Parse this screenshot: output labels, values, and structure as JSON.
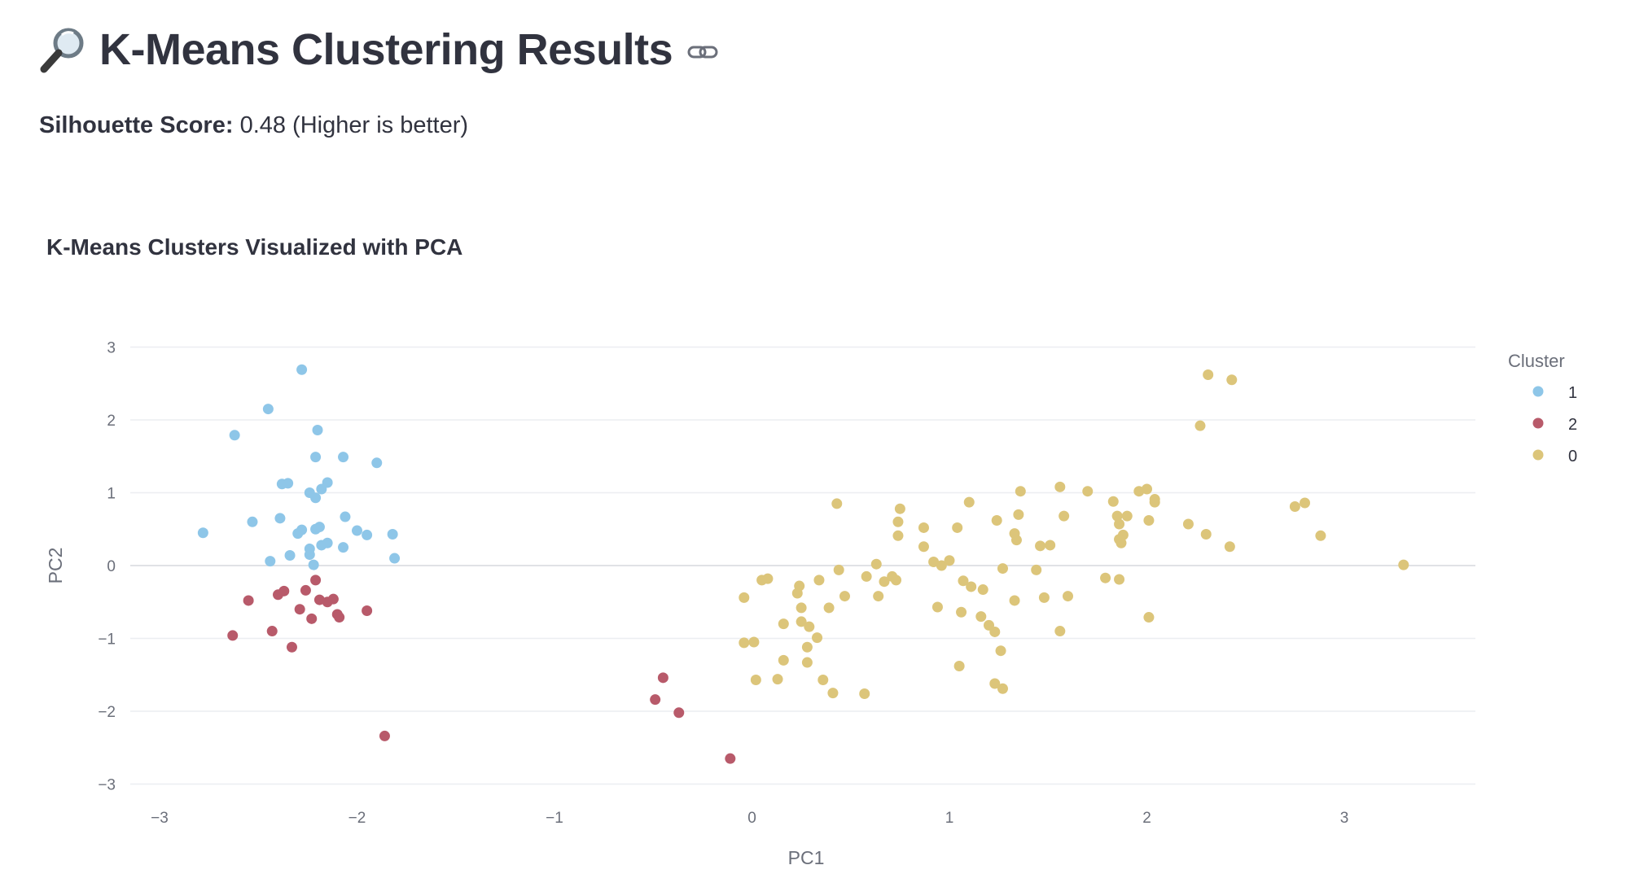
{
  "header": {
    "title": "K-Means Clustering Results",
    "icon": "magnifier-icon",
    "anchor_icon": "link-icon"
  },
  "metric": {
    "label": "Silhouette Score:",
    "value": "0.48 (Higher is better)"
  },
  "chart_data": {
    "type": "scatter",
    "title": "K-Means Clusters Visualized with PCA",
    "xlabel": "PC1",
    "ylabel": "PC2",
    "xlim": [
      -3.3,
      3.65
    ],
    "ylim": [
      -3.2,
      3.1
    ],
    "xticks": [
      -3,
      -2,
      -1,
      0,
      1,
      2,
      3
    ],
    "yticks": [
      -3,
      -2,
      -1,
      0,
      1,
      2,
      3
    ],
    "grid": "horizontal",
    "legend": {
      "title": "Cluster",
      "placement": "right"
    },
    "series": [
      {
        "name": "1",
        "color": "#8ec6e8",
        "points": [
          [
            -2.28,
            2.69
          ],
          [
            -2.45,
            2.15
          ],
          [
            -2.62,
            1.79
          ],
          [
            -2.2,
            1.86
          ],
          [
            -2.21,
            1.49
          ],
          [
            -2.07,
            1.49
          ],
          [
            -1.9,
            1.41
          ],
          [
            -2.35,
            1.13
          ],
          [
            -2.38,
            1.12
          ],
          [
            -2.15,
            1.14
          ],
          [
            -2.18,
            1.05
          ],
          [
            -2.24,
            1.0
          ],
          [
            -2.21,
            0.93
          ],
          [
            -2.06,
            0.67
          ],
          [
            -2.39,
            0.65
          ],
          [
            -2.53,
            0.6
          ],
          [
            -2.78,
            0.45
          ],
          [
            -2.28,
            0.49
          ],
          [
            -2.3,
            0.44
          ],
          [
            -2.19,
            0.53
          ],
          [
            -2.21,
            0.5
          ],
          [
            -2.0,
            0.48
          ],
          [
            -1.95,
            0.42
          ],
          [
            -1.82,
            0.43
          ],
          [
            -2.15,
            0.31
          ],
          [
            -2.18,
            0.28
          ],
          [
            -2.07,
            0.25
          ],
          [
            -2.24,
            0.23
          ],
          [
            -2.24,
            0.15
          ],
          [
            -2.34,
            0.14
          ],
          [
            -1.81,
            0.1
          ],
          [
            -2.44,
            0.06
          ],
          [
            -2.22,
            0.01
          ]
        ]
      },
      {
        "name": "2",
        "color": "#b85a6a",
        "points": [
          [
            -2.21,
            -0.2
          ],
          [
            -2.26,
            -0.34
          ],
          [
            -2.37,
            -0.35
          ],
          [
            -2.4,
            -0.4
          ],
          [
            -2.55,
            -0.48
          ],
          [
            -2.19,
            -0.47
          ],
          [
            -2.12,
            -0.46
          ],
          [
            -2.15,
            -0.5
          ],
          [
            -2.29,
            -0.6
          ],
          [
            -1.95,
            -0.62
          ],
          [
            -2.1,
            -0.67
          ],
          [
            -2.09,
            -0.71
          ],
          [
            -2.23,
            -0.73
          ],
          [
            -2.43,
            -0.9
          ],
          [
            -2.63,
            -0.96
          ],
          [
            -2.33,
            -1.12
          ],
          [
            -1.86,
            -2.34
          ],
          [
            -0.45,
            -1.54
          ],
          [
            -0.49,
            -1.84
          ],
          [
            -0.37,
            -2.02
          ],
          [
            -0.11,
            -2.65
          ]
        ]
      },
      {
        "name": "0",
        "color": "#dcc57a",
        "points": [
          [
            2.31,
            2.62
          ],
          [
            2.43,
            2.55
          ],
          [
            2.27,
            1.92
          ],
          [
            1.56,
            1.08
          ],
          [
            1.36,
            1.02
          ],
          [
            1.7,
            1.02
          ],
          [
            1.96,
            1.02
          ],
          [
            2.0,
            1.05
          ],
          [
            2.04,
            0.91
          ],
          [
            2.04,
            0.87
          ],
          [
            1.1,
            0.87
          ],
          [
            1.83,
            0.88
          ],
          [
            0.43,
            0.85
          ],
          [
            0.75,
            0.78
          ],
          [
            2.75,
            0.81
          ],
          [
            2.8,
            0.86
          ],
          [
            1.35,
            0.7
          ],
          [
            1.58,
            0.68
          ],
          [
            1.85,
            0.68
          ],
          [
            1.9,
            0.68
          ],
          [
            0.74,
            0.6
          ],
          [
            1.24,
            0.62
          ],
          [
            1.86,
            0.57
          ],
          [
            2.01,
            0.62
          ],
          [
            2.21,
            0.57
          ],
          [
            0.87,
            0.52
          ],
          [
            1.04,
            0.52
          ],
          [
            2.3,
            0.43
          ],
          [
            2.88,
            0.41
          ],
          [
            1.33,
            0.44
          ],
          [
            1.88,
            0.42
          ],
          [
            1.86,
            0.36
          ],
          [
            0.74,
            0.41
          ],
          [
            1.87,
            0.31
          ],
          [
            1.34,
            0.35
          ],
          [
            1.51,
            0.28
          ],
          [
            1.46,
            0.27
          ],
          [
            2.42,
            0.26
          ],
          [
            0.87,
            0.26
          ],
          [
            1.0,
            0.07
          ],
          [
            0.92,
            0.05
          ],
          [
            0.96,
            0.0
          ],
          [
            0.63,
            0.02
          ],
          [
            3.3,
            0.01
          ],
          [
            1.27,
            -0.04
          ],
          [
            1.44,
            -0.06
          ],
          [
            0.44,
            -0.06
          ],
          [
            0.05,
            -0.2
          ],
          [
            0.08,
            -0.18
          ],
          [
            0.34,
            -0.2
          ],
          [
            0.58,
            -0.15
          ],
          [
            0.67,
            -0.22
          ],
          [
            0.71,
            -0.15
          ],
          [
            0.73,
            -0.2
          ],
          [
            1.07,
            -0.21
          ],
          [
            1.11,
            -0.29
          ],
          [
            1.17,
            -0.33
          ],
          [
            1.79,
            -0.17
          ],
          [
            1.86,
            -0.19
          ],
          [
            0.24,
            -0.28
          ],
          [
            0.23,
            -0.38
          ],
          [
            0.47,
            -0.42
          ],
          [
            0.64,
            -0.42
          ],
          [
            1.33,
            -0.48
          ],
          [
            1.48,
            -0.44
          ],
          [
            1.6,
            -0.42
          ],
          [
            -0.04,
            -0.44
          ],
          [
            0.25,
            -0.58
          ],
          [
            0.39,
            -0.58
          ],
          [
            0.94,
            -0.57
          ],
          [
            1.06,
            -0.64
          ],
          [
            1.16,
            -0.7
          ],
          [
            0.16,
            -0.8
          ],
          [
            0.25,
            -0.77
          ],
          [
            0.29,
            -0.84
          ],
          [
            0.33,
            -0.99
          ],
          [
            1.2,
            -0.82
          ],
          [
            1.23,
            -0.91
          ],
          [
            1.56,
            -0.9
          ],
          [
            2.01,
            -0.71
          ],
          [
            -0.04,
            -1.06
          ],
          [
            0.01,
            -1.05
          ],
          [
            0.28,
            -1.12
          ],
          [
            1.26,
            -1.17
          ],
          [
            0.16,
            -1.3
          ],
          [
            0.28,
            -1.33
          ],
          [
            1.05,
            -1.38
          ],
          [
            0.02,
            -1.57
          ],
          [
            0.13,
            -1.56
          ],
          [
            0.36,
            -1.57
          ],
          [
            1.23,
            -1.62
          ],
          [
            1.27,
            -1.69
          ],
          [
            0.41,
            -1.75
          ],
          [
            0.57,
            -1.76
          ]
        ]
      }
    ]
  }
}
